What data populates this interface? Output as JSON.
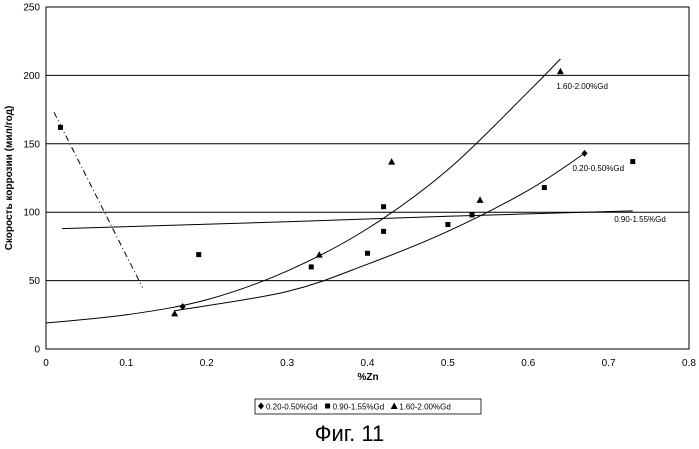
{
  "chart_data": {
    "type": "scatter",
    "xlabel": "%Zn",
    "ylabel": "Скорость коррозии (мил/год)",
    "xlim": [
      0,
      0.8
    ],
    "ylim": [
      0,
      250
    ],
    "xticks": [
      "0",
      "0.1",
      "0.2",
      "0.3",
      "0.4",
      "0.5",
      "0.6",
      "0.7",
      "0.8"
    ],
    "yticks": [
      "0",
      "50",
      "100",
      "150",
      "200",
      "250"
    ],
    "gridlines_y": [
      50,
      100,
      150,
      200
    ],
    "legend_position": "bottom",
    "series": [
      {
        "name": "0.20-0.50%Gd",
        "marker": "diamond",
        "points": [
          [
            0.17,
            31
          ],
          [
            0.67,
            143
          ]
        ],
        "fit_label": "0.20-0.50%Gd",
        "fit": [
          [
            0.16,
            28
          ],
          [
            0.3,
            42
          ],
          [
            0.4,
            62
          ],
          [
            0.5,
            86
          ],
          [
            0.6,
            116
          ],
          [
            0.67,
            143
          ]
        ]
      },
      {
        "name": "0.90-1.55%Gd",
        "marker": "square",
        "points": [
          [
            0.018,
            162
          ],
          [
            0.19,
            69
          ],
          [
            0.33,
            60
          ],
          [
            0.4,
            70
          ],
          [
            0.42,
            104
          ],
          [
            0.42,
            86
          ],
          [
            0.5,
            91
          ],
          [
            0.53,
            98
          ],
          [
            0.62,
            118
          ],
          [
            0.73,
            137
          ]
        ],
        "fit_label": "0.90-1.55%Gd",
        "fit": [
          [
            0.02,
            88
          ],
          [
            0.3,
            93
          ],
          [
            0.5,
            97
          ],
          [
            0.73,
            101
          ]
        ]
      },
      {
        "name": "1.60-2.00%Gd",
        "marker": "triangle",
        "points": [
          [
            0.16,
            26
          ],
          [
            0.34,
            69
          ],
          [
            0.43,
            137
          ],
          [
            0.54,
            109
          ],
          [
            0.64,
            203
          ]
        ],
        "fit_label": "1.60-2.00%Gd",
        "fit": [
          [
            0.0,
            19
          ],
          [
            0.1,
            25
          ],
          [
            0.2,
            36
          ],
          [
            0.3,
            57
          ],
          [
            0.4,
            88
          ],
          [
            0.5,
            131
          ],
          [
            0.6,
            188
          ],
          [
            0.64,
            212
          ]
        ]
      }
    ],
    "dashed_line": [
      [
        0.01,
        173
      ],
      [
        0.12,
        45
      ]
    ]
  },
  "figure_caption": "Фиг. 11"
}
